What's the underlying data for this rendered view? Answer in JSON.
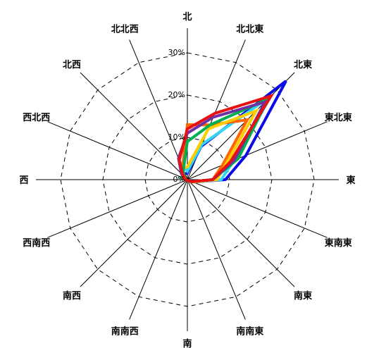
{
  "chart_data": {
    "type": "radar",
    "directions": [
      "北",
      "北北東",
      "北東",
      "東北東",
      "東",
      "東南東",
      "南東",
      "南南東",
      "南",
      "南南西",
      "南西",
      "西南西",
      "西",
      "西北西",
      "北西",
      "北北西"
    ],
    "ticks": [
      "0%",
      "10%",
      "20%",
      "30%"
    ],
    "rmax": 30,
    "series": [
      {
        "color": "#0a0ae6",
        "values": [
          1.5,
          8.5,
          33,
          15,
          9,
          1.5,
          0.5,
          0.2,
          0.2,
          0.2,
          0.2,
          0.2,
          0.4,
          0.8,
          1.3,
          1.5
        ]
      },
      {
        "color": "#33d6f0",
        "values": [
          2,
          9,
          28,
          12,
          8,
          1.5,
          0.5,
          0.2,
          0.2,
          0.2,
          0.2,
          0.2,
          0.4,
          0.8,
          2,
          4.5
        ]
      },
      {
        "color": "#ff6600",
        "values": [
          13,
          14,
          20,
          9,
          6,
          1.5,
          0.5,
          0.2,
          0.2,
          0.2,
          0.2,
          0.2,
          0.3,
          0.5,
          1,
          3
        ]
      },
      {
        "color": "#ffcc00",
        "values": [
          3,
          13,
          23,
          10,
          7,
          1.5,
          0.5,
          0.2,
          0.2,
          0.2,
          0.2,
          0.2,
          0.4,
          0.8,
          1.5,
          3
        ]
      },
      {
        "color": "#00b050",
        "values": [
          9,
          14,
          27,
          13,
          6,
          1.2,
          0.5,
          0.2,
          0.2,
          0.2,
          0.2,
          0.2,
          0.3,
          1.5,
          1.2,
          2.5
        ]
      },
      {
        "color": "#7030a0",
        "values": [
          11,
          16,
          26,
          12,
          6,
          1.2,
          0.5,
          0.2,
          0.2,
          0.2,
          0.2,
          0.2,
          0.4,
          0.8,
          2,
          5.5
        ]
      },
      {
        "color": "#e81010",
        "values": [
          12,
          17,
          28,
          11,
          6,
          1.2,
          0.5,
          0.2,
          0.2,
          0.2,
          0.2,
          0.2,
          0.4,
          0.8,
          1.5,
          5
        ]
      }
    ]
  }
}
